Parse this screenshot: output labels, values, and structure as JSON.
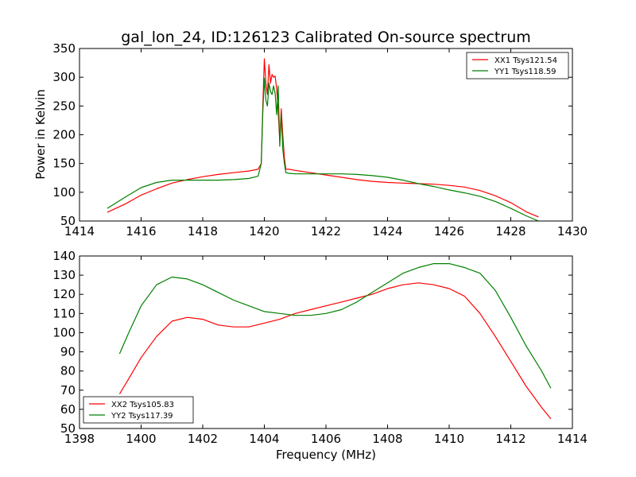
{
  "colors": {
    "red": "#ff0000",
    "green": "#008000"
  },
  "chart_data": [
    {
      "type": "line",
      "title": "gal_lon_24, ID:126123 Calibrated On-source spectrum",
      "xlabel": "",
      "ylabel": "Power in Kelvin",
      "xlim": [
        1414,
        1430
      ],
      "ylim": [
        50,
        350
      ],
      "xticks": [
        1414,
        1416,
        1418,
        1420,
        1422,
        1424,
        1426,
        1428,
        1430
      ],
      "yticks": [
        50,
        100,
        150,
        200,
        250,
        300,
        350
      ],
      "legend_position": "top-right",
      "series": [
        {
          "name": "XX1 Tsys121.54",
          "color": "#ff0000",
          "x": [
            1414.9,
            1415.5,
            1416.0,
            1416.5,
            1417.0,
            1417.5,
            1418.0,
            1418.5,
            1419.0,
            1419.5,
            1419.8,
            1419.9,
            1419.95,
            1420.0,
            1420.05,
            1420.1,
            1420.15,
            1420.2,
            1420.25,
            1420.3,
            1420.35,
            1420.4,
            1420.45,
            1420.5,
            1420.55,
            1420.6,
            1420.65,
            1420.7,
            1420.8,
            1421.0,
            1421.5,
            1422.0,
            1422.5,
            1423.0,
            1423.5,
            1424.0,
            1424.5,
            1425.0,
            1425.5,
            1426.0,
            1426.5,
            1427.0,
            1427.5,
            1428.0,
            1428.5,
            1428.9
          ],
          "y": [
            65,
            80,
            95,
            106,
            116,
            122,
            127,
            131,
            134,
            137,
            140,
            150,
            250,
            332,
            290,
            270,
            322,
            290,
            305,
            300,
            302,
            280,
            240,
            190,
            245,
            200,
            160,
            140,
            140,
            138,
            134,
            130,
            126,
            122,
            119,
            117,
            116,
            115,
            114,
            112,
            109,
            103,
            94,
            82,
            66,
            57
          ]
        },
        {
          "name": "YY1 Tsys118.59",
          "color": "#008000",
          "x": [
            1414.9,
            1415.5,
            1416.0,
            1416.5,
            1417.0,
            1417.5,
            1418.0,
            1418.5,
            1419.0,
            1419.5,
            1419.8,
            1419.9,
            1419.95,
            1420.0,
            1420.05,
            1420.1,
            1420.15,
            1420.2,
            1420.25,
            1420.3,
            1420.35,
            1420.4,
            1420.45,
            1420.5,
            1420.55,
            1420.6,
            1420.65,
            1420.7,
            1420.8,
            1421.0,
            1421.5,
            1422.0,
            1422.5,
            1423.0,
            1423.5,
            1424.0,
            1424.5,
            1425.0,
            1425.5,
            1426.0,
            1426.5,
            1427.0,
            1427.5,
            1428.0,
            1428.5,
            1428.9
          ],
          "y": [
            72,
            92,
            108,
            117,
            121,
            121,
            121,
            121,
            122,
            124,
            128,
            150,
            240,
            298,
            260,
            250,
            290,
            275,
            270,
            285,
            272,
            235,
            285,
            180,
            235,
            175,
            150,
            134,
            133,
            132,
            132,
            132,
            132,
            131,
            129,
            126,
            121,
            115,
            110,
            104,
            99,
            93,
            84,
            72,
            59,
            50
          ]
        }
      ]
    },
    {
      "type": "line",
      "title": "",
      "xlabel": "Frequency (MHz)",
      "ylabel": "",
      "xlim": [
        1398,
        1414
      ],
      "ylim": [
        50,
        140
      ],
      "xticks": [
        1398,
        1400,
        1402,
        1404,
        1406,
        1408,
        1410,
        1412,
        1414
      ],
      "yticks": [
        50,
        60,
        70,
        80,
        90,
        100,
        110,
        120,
        130,
        140
      ],
      "legend_position": "bottom-left",
      "series": [
        {
          "name": "XX2 Tsys105.83",
          "color": "#ff0000",
          "x": [
            1399.3,
            1399.6,
            1400.0,
            1400.5,
            1401.0,
            1401.5,
            1402.0,
            1402.5,
            1403.0,
            1403.5,
            1404.0,
            1404.5,
            1405.0,
            1405.5,
            1406.0,
            1406.5,
            1407.0,
            1407.5,
            1408.0,
            1408.5,
            1409.0,
            1409.5,
            1410.0,
            1410.5,
            1411.0,
            1411.5,
            1412.0,
            1412.5,
            1413.0,
            1413.3
          ],
          "y": [
            68,
            76,
            87,
            98,
            106,
            108,
            107,
            104,
            103,
            103,
            105,
            107,
            110,
            112,
            114,
            116,
            118,
            120,
            123,
            125,
            126,
            125,
            123,
            119,
            110,
            98,
            85,
            72,
            61,
            55
          ]
        },
        {
          "name": "YY2 Tsys117.39",
          "color": "#008000",
          "x": [
            1399.3,
            1399.6,
            1400.0,
            1400.5,
            1401.0,
            1401.5,
            1402.0,
            1402.5,
            1403.0,
            1403.5,
            1404.0,
            1404.5,
            1405.0,
            1405.5,
            1406.0,
            1406.5,
            1407.0,
            1407.5,
            1408.0,
            1408.5,
            1409.0,
            1409.5,
            1410.0,
            1410.5,
            1411.0,
            1411.5,
            1412.0,
            1412.5,
            1413.0,
            1413.3
          ],
          "y": [
            89,
            100,
            114,
            125,
            129,
            128,
            125,
            121,
            117,
            114,
            111,
            110,
            109,
            109,
            110,
            112,
            116,
            121,
            126,
            131,
            134,
            136,
            136,
            134,
            131,
            122,
            108,
            93,
            80,
            71
          ]
        }
      ]
    }
  ]
}
